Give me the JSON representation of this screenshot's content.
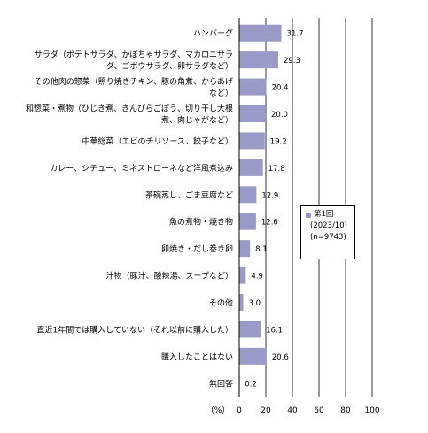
{
  "chart_data": {
    "type": "bar",
    "orientation": "horizontal",
    "categories": [
      [
        "ハンバーグ"
      ],
      [
        "サラダ（ポテトサラダ、かぼちゃサラダ、マカロニサラ",
        "ダ、ゴボウサラダ、卵サラダなど）"
      ],
      [
        "その他肉の惣菜（照り焼きチキン、豚の角煮、からあげ",
        "など）"
      ],
      [
        "和惣菜・煮物（ひじき煮、きんぴらごぼう、切り干し大根",
        "煮、肉じゃがなど）"
      ],
      [
        "中華総菜（エビのチリソース、餃子など）"
      ],
      [
        "カレー、シチュー、ミネストローネなど洋風煮込み"
      ],
      [
        "茶碗蒸し、ごま豆腐など"
      ],
      [
        "魚の煮物・焼き物"
      ],
      [
        "卵焼き・だし巻き卵"
      ],
      [
        "汁物（豚汁、酸辣湯、スープなど）"
      ],
      [
        "その他"
      ],
      [
        "直近1年間では購入していない（それ以前に購入した）"
      ],
      [
        "購入したことはない"
      ],
      [
        "無回答"
      ]
    ],
    "series": [
      {
        "name": "第1回",
        "values": [
          31.7,
          29.3,
          20.4,
          20.0,
          19.2,
          17.8,
          12.9,
          12.6,
          8.1,
          4.9,
          3.0,
          16.1,
          20.6,
          0.2
        ],
        "value_labels": [
          "31.7",
          "29.3",
          "20.4",
          "20.0",
          "19.2",
          "17.8",
          "12.9",
          "12.6",
          "8.1",
          "4.9",
          "3.0",
          "16.1",
          "20.6",
          "0.2"
        ],
        "color": "#9a9ac8"
      }
    ],
    "xlim": [
      0,
      100
    ],
    "xticks": [
      "0",
      "20",
      "40",
      "60",
      "80",
      "100"
    ],
    "xlabel": "（%）",
    "grid": "vertical",
    "legend": {
      "position": "right",
      "label": "第1回",
      "lines": [
        "(2023/10)",
        "(n=9743)"
      ]
    }
  }
}
